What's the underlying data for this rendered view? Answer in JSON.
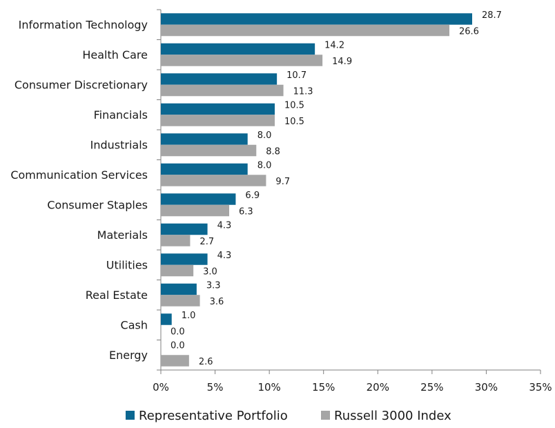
{
  "chart_data": {
    "type": "bar",
    "orientation": "horizontal",
    "title": "",
    "xlabel": "",
    "ylabel": "",
    "xlim": [
      0,
      35
    ],
    "x_ticks": [
      "0%",
      "5%",
      "10%",
      "15%",
      "20%",
      "25%",
      "30%",
      "35%"
    ],
    "grid": false,
    "legend_position": "bottom",
    "categories": [
      "Information Technology",
      "Health Care",
      "Consumer Discretionary",
      "Financials",
      "Industrials",
      "Communication Services",
      "Consumer Staples",
      "Materials",
      "Utilities",
      "Real Estate",
      "Cash",
      "Energy"
    ],
    "series": [
      {
        "name": "Representative Portfolio",
        "color": "#0B6791",
        "values": [
          28.7,
          14.2,
          10.7,
          10.5,
          8.0,
          8.0,
          6.9,
          4.3,
          4.3,
          3.3,
          1.0,
          0.0
        ],
        "labels": [
          "28.7",
          "14.2",
          "10.7",
          "10.5",
          "8.0",
          "8.0",
          "6.9",
          "4.3",
          "4.3",
          "3.3",
          "1.0",
          "0.0"
        ]
      },
      {
        "name": "Russell 3000 Index",
        "color": "#A5A5A5",
        "values": [
          26.6,
          14.9,
          11.3,
          10.5,
          8.8,
          9.7,
          6.3,
          2.7,
          3.0,
          3.6,
          0.0,
          2.6
        ],
        "labels": [
          "26.6",
          "14.9",
          "11.3",
          "10.5",
          "8.8",
          "9.7",
          "6.3",
          "2.7",
          "3.0",
          "3.6",
          "0.0",
          "2.6"
        ]
      }
    ]
  }
}
